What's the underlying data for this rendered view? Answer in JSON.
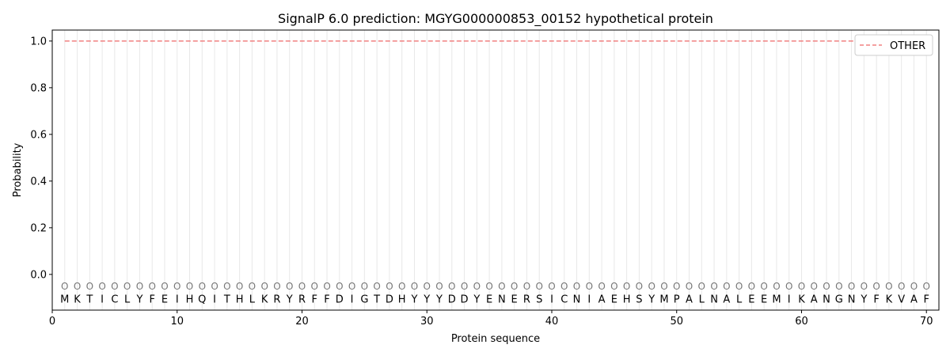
{
  "chart_data": {
    "type": "line",
    "title": "SignalP 6.0 prediction: MGYG000000853_00152 hypothetical protein",
    "xlabel": "Protein sequence",
    "ylabel": "Probability",
    "xlim": [
      0,
      71
    ],
    "ylim": [
      -0.153,
      1.047
    ],
    "xticks": [
      0,
      10,
      20,
      30,
      40,
      50,
      60,
      70
    ],
    "yticks": [
      0.0,
      0.2,
      0.4,
      0.6,
      0.8,
      1.0
    ],
    "ytick_labels": [
      "0.0",
      "0.2",
      "0.4",
      "0.6",
      "0.8",
      "1.0"
    ],
    "sequence": "MKTICLYFEIHQITHLKRYRFFDIGTDHYYYDDYENERSICNIAEHSYMPALNALEEMIKANGNYFKVAF",
    "region_label": "O",
    "legend_position": "top-right",
    "series": [
      {
        "name": "OTHER",
        "color": "#f08080",
        "style": "dashed",
        "x_range": [
          1,
          70
        ],
        "value": 1.0
      }
    ]
  }
}
